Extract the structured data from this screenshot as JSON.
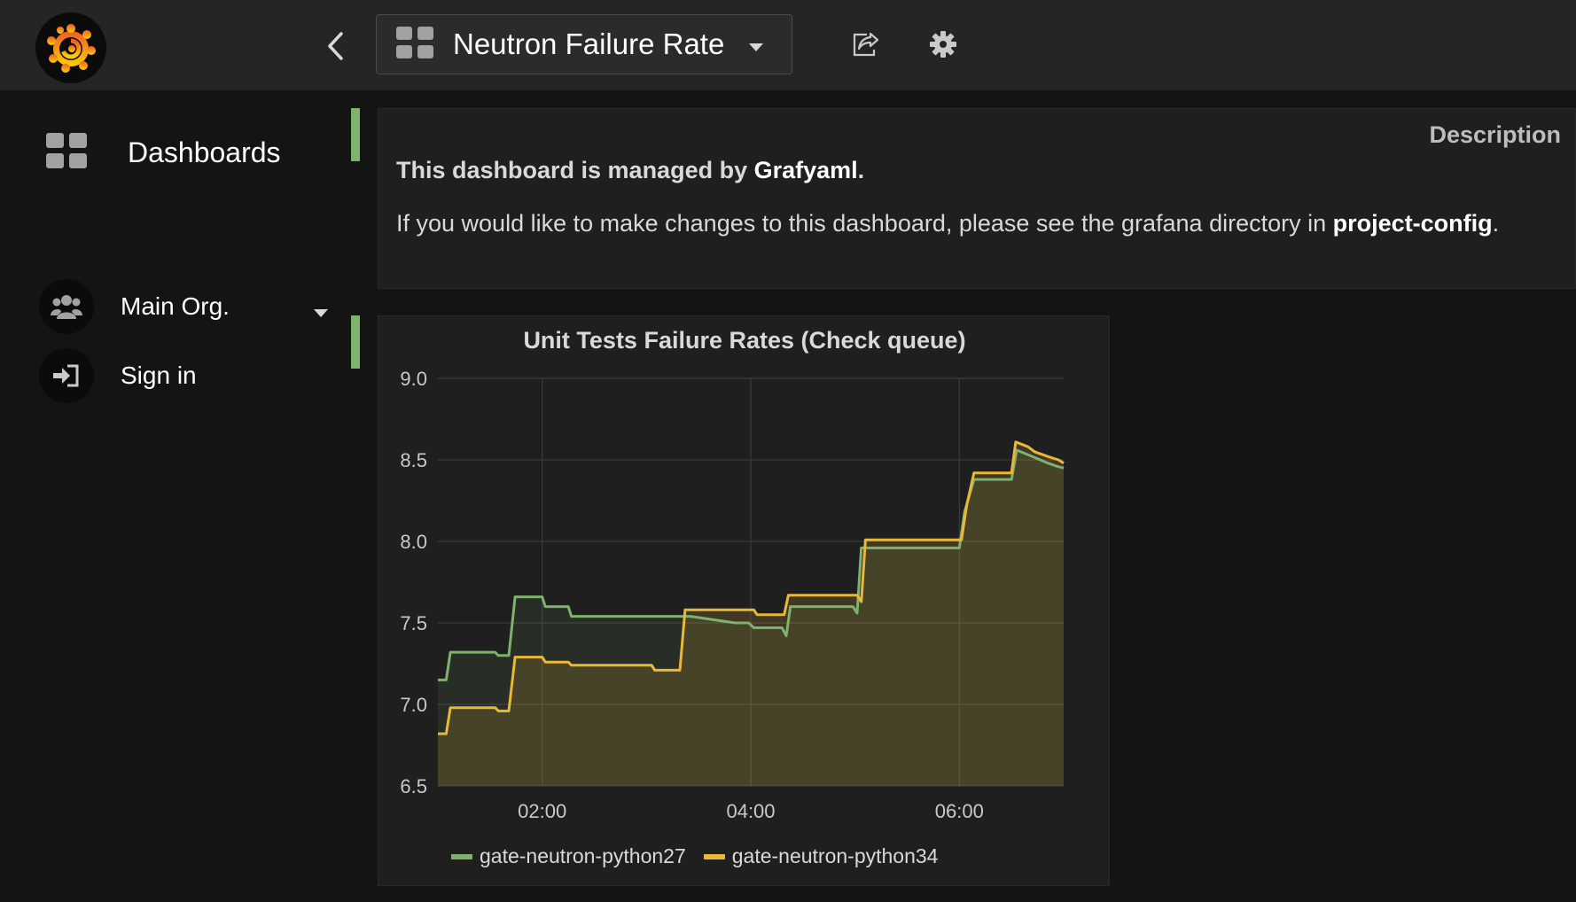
{
  "header": {
    "dashboard_title": "Neutron Failure Rate"
  },
  "sidebar": {
    "dashboards_label": "Dashboards",
    "org_label": "Main Org.",
    "signin_label": "Sign in"
  },
  "description_panel": {
    "title": "Description",
    "line1_prefix": "This dashboard is managed by ",
    "line1_bold": "Grafyaml",
    "line1_suffix": ".",
    "line2_prefix": "If you would like to make changes to this dashboard, please see the grafana directory in ",
    "line2_bold": "project-config",
    "line2_suffix": "."
  },
  "colors": {
    "accent_green": "#7eb26d",
    "accent_yellow": "#eab839"
  },
  "chart_data": {
    "type": "line",
    "title": "Unit Tests Failure Rates (Check queue)",
    "ylim": [
      6.5,
      9.0
    ],
    "y_ticks": [
      "9.0",
      "8.5",
      "8.0",
      "7.5",
      "7.0",
      "6.5"
    ],
    "x_range_hours": [
      1.0,
      7.0
    ],
    "x_ticks": [
      {
        "label": "02:00",
        "value": 2.0
      },
      {
        "label": "04:00",
        "value": 4.0
      },
      {
        "label": "06:00",
        "value": 6.0
      }
    ],
    "grid": true,
    "legend_placement": "bottom",
    "series": [
      {
        "name": "gate-neutron-python27",
        "color": "#7eb26d",
        "points": [
          [
            1.0,
            7.15
          ],
          [
            1.08,
            7.15
          ],
          [
            1.12,
            7.32
          ],
          [
            1.55,
            7.32
          ],
          [
            1.58,
            7.3
          ],
          [
            1.68,
            7.3
          ],
          [
            1.74,
            7.66
          ],
          [
            2.0,
            7.66
          ],
          [
            2.03,
            7.6
          ],
          [
            2.25,
            7.6
          ],
          [
            2.28,
            7.54
          ],
          [
            3.38,
            7.54
          ],
          [
            3.42,
            7.54
          ],
          [
            3.85,
            7.5
          ],
          [
            3.98,
            7.5
          ],
          [
            4.03,
            7.47
          ],
          [
            4.3,
            7.47
          ],
          [
            4.34,
            7.42
          ],
          [
            4.38,
            7.6
          ],
          [
            4.98,
            7.6
          ],
          [
            5.02,
            7.56
          ],
          [
            5.06,
            7.96
          ],
          [
            6.0,
            7.96
          ],
          [
            6.05,
            8.18
          ],
          [
            6.14,
            8.38
          ],
          [
            6.5,
            8.38
          ],
          [
            6.55,
            8.56
          ],
          [
            6.7,
            8.52
          ],
          [
            6.85,
            8.48
          ],
          [
            6.94,
            8.46
          ],
          [
            7.0,
            8.45
          ]
        ]
      },
      {
        "name": "gate-neutron-python34",
        "color": "#eab839",
        "points": [
          [
            1.0,
            6.82
          ],
          [
            1.08,
            6.82
          ],
          [
            1.12,
            6.98
          ],
          [
            1.55,
            6.98
          ],
          [
            1.58,
            6.96
          ],
          [
            1.68,
            6.96
          ],
          [
            1.74,
            7.29
          ],
          [
            2.0,
            7.29
          ],
          [
            2.03,
            7.26
          ],
          [
            2.25,
            7.26
          ],
          [
            2.28,
            7.24
          ],
          [
            3.05,
            7.24
          ],
          [
            3.08,
            7.21
          ],
          [
            3.32,
            7.21
          ],
          [
            3.37,
            7.58
          ],
          [
            4.03,
            7.58
          ],
          [
            4.06,
            7.55
          ],
          [
            4.32,
            7.55
          ],
          [
            4.36,
            7.67
          ],
          [
            5.02,
            7.67
          ],
          [
            5.06,
            7.63
          ],
          [
            5.1,
            8.01
          ],
          [
            6.02,
            8.01
          ],
          [
            6.07,
            8.22
          ],
          [
            6.14,
            8.42
          ],
          [
            6.5,
            8.42
          ],
          [
            6.54,
            8.61
          ],
          [
            6.66,
            8.58
          ],
          [
            6.72,
            8.55
          ],
          [
            6.85,
            8.52
          ],
          [
            6.95,
            8.5
          ],
          [
            7.0,
            8.48
          ]
        ]
      }
    ]
  }
}
